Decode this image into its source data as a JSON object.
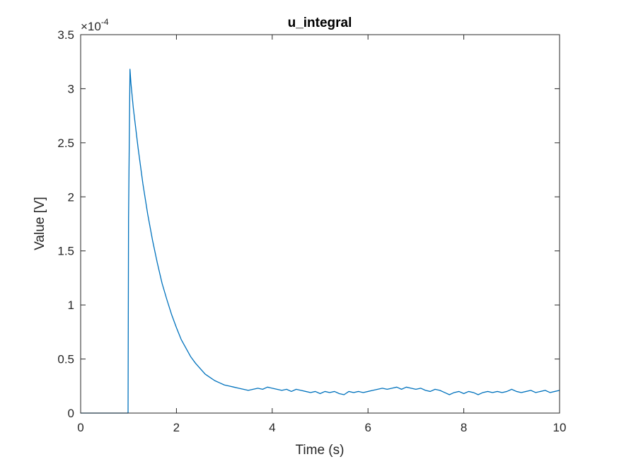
{
  "chart_data": {
    "type": "line",
    "title": "u_integral",
    "xlabel": "Time (s)",
    "ylabel": "Value [V]",
    "xlim": [
      0,
      10
    ],
    "ylim": [
      0,
      3.5
    ],
    "y_scale_exponent": "-4",
    "y_scale_base": "×10",
    "xticks": [
      0,
      2,
      4,
      6,
      8,
      10
    ],
    "xtick_labels": [
      "0",
      "2",
      "4",
      "6",
      "8",
      "10"
    ],
    "yticks": [
      0,
      0.5,
      1,
      1.5,
      2,
      2.5,
      3,
      3.5
    ],
    "ytick_labels": [
      "0",
      "0.5",
      "1",
      "1.5",
      "2",
      "2.5",
      "3",
      "3.5"
    ],
    "grid": false,
    "line_color": "#0072BD",
    "series": [
      {
        "name": "u_integral",
        "x": [
          0,
          0.5,
          0.98,
          0.99,
          1.0,
          1.03,
          1.05,
          1.1,
          1.2,
          1.3,
          1.4,
          1.5,
          1.6,
          1.7,
          1.8,
          1.9,
          2.0,
          2.1,
          2.2,
          2.3,
          2.4,
          2.5,
          2.6,
          2.7,
          2.8,
          2.9,
          3.0,
          3.1,
          3.2,
          3.3,
          3.4,
          3.5,
          3.6,
          3.7,
          3.8,
          3.9,
          4.0,
          4.1,
          4.2,
          4.3,
          4.4,
          4.5,
          4.6,
          4.7,
          4.8,
          4.9,
          5.0,
          5.1,
          5.2,
          5.3,
          5.4,
          5.5,
          5.6,
          5.7,
          5.8,
          5.9,
          6.0,
          6.1,
          6.2,
          6.3,
          6.4,
          6.5,
          6.6,
          6.7,
          6.8,
          6.9,
          7.0,
          7.1,
          7.2,
          7.3,
          7.4,
          7.5,
          7.6,
          7.7,
          7.8,
          7.9,
          8.0,
          8.1,
          8.2,
          8.3,
          8.4,
          8.5,
          8.6,
          8.7,
          8.8,
          8.9,
          9.0,
          9.1,
          9.2,
          9.3,
          9.4,
          9.5,
          9.6,
          9.7,
          9.8,
          9.9,
          10.0
        ],
        "values": [
          0,
          0,
          0,
          0,
          1.8,
          3.18,
          3.05,
          2.82,
          2.45,
          2.12,
          1.84,
          1.6,
          1.39,
          1.2,
          1.05,
          0.91,
          0.79,
          0.68,
          0.6,
          0.52,
          0.46,
          0.41,
          0.36,
          0.33,
          0.3,
          0.28,
          0.26,
          0.25,
          0.24,
          0.23,
          0.22,
          0.21,
          0.22,
          0.23,
          0.22,
          0.24,
          0.23,
          0.22,
          0.21,
          0.22,
          0.2,
          0.22,
          0.21,
          0.2,
          0.19,
          0.2,
          0.18,
          0.2,
          0.19,
          0.2,
          0.18,
          0.17,
          0.2,
          0.19,
          0.2,
          0.19,
          0.2,
          0.21,
          0.22,
          0.23,
          0.22,
          0.23,
          0.24,
          0.22,
          0.24,
          0.23,
          0.22,
          0.23,
          0.21,
          0.2,
          0.22,
          0.21,
          0.19,
          0.17,
          0.19,
          0.2,
          0.18,
          0.2,
          0.19,
          0.17,
          0.19,
          0.2,
          0.19,
          0.2,
          0.19,
          0.2,
          0.22,
          0.2,
          0.19,
          0.2,
          0.21,
          0.19,
          0.2,
          0.21,
          0.19,
          0.2,
          0.21
        ]
      }
    ]
  }
}
